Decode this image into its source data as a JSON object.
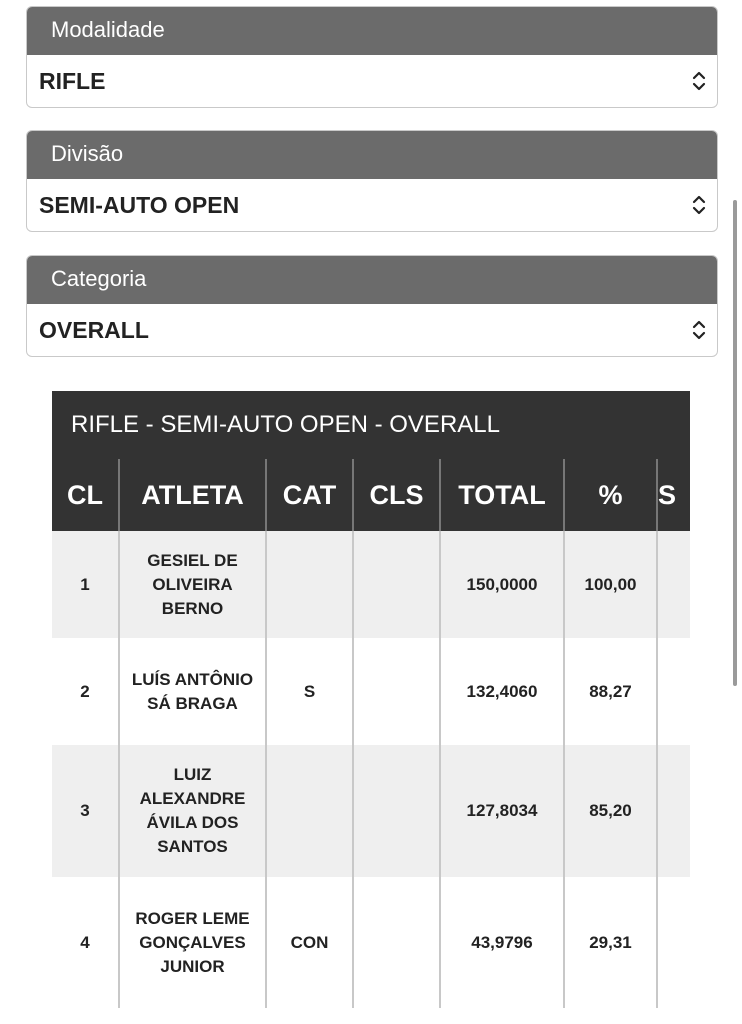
{
  "selects": [
    {
      "label": "Modalidade",
      "value": "RIFLE"
    },
    {
      "label": "Divisão",
      "value": "SEMI-AUTO OPEN"
    },
    {
      "label": "Categoria",
      "value": "OVERALL"
    }
  ],
  "table": {
    "title": "RIFLE - SEMI-AUTO OPEN - OVERALL",
    "headers": [
      "CL",
      "ATLETA",
      "CAT",
      "CLS",
      "TOTAL",
      "%",
      "S"
    ],
    "rows": [
      [
        "1",
        "GESIEL DE OLIVEIRA BERNO",
        null,
        null,
        "150,0000",
        "100,00",
        null
      ],
      [
        "2",
        "LUÍS ANTÔNIO SÁ BRAGA",
        "S",
        null,
        "132,4060",
        "88,27",
        null
      ],
      [
        "3",
        "LUIZ ALEXANDRE ÁVILA DOS SANTOS",
        null,
        null,
        "127,8034",
        "85,20",
        null
      ],
      [
        "4",
        "ROGER LEME GONÇALVES JUNIOR",
        "CON",
        null,
        "43,9796",
        "29,31",
        null
      ]
    ]
  }
}
